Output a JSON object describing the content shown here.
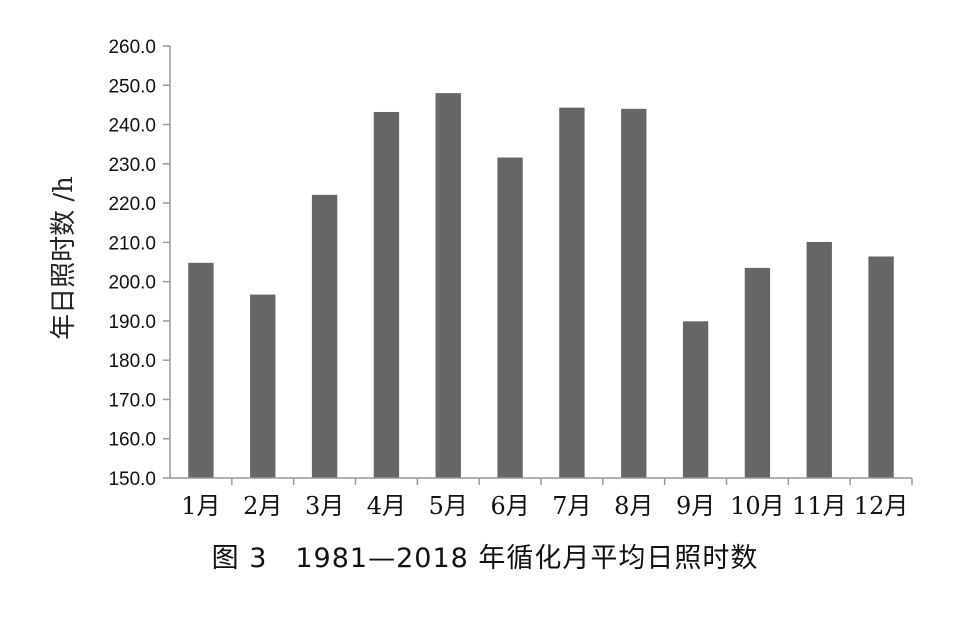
{
  "chart_data": {
    "type": "bar",
    "title": "图 3　1981—2018 年循化月平均日照时数",
    "xlabel": "",
    "ylabel": "年日照时数 /h",
    "categories": [
      "1月",
      "2月",
      "3月",
      "4月",
      "5月",
      "6月",
      "7月",
      "8月",
      "9月",
      "10月",
      "11月",
      "12月"
    ],
    "values": [
      204.8,
      196.7,
      222.1,
      243.2,
      248.0,
      231.6,
      244.3,
      244.0,
      189.9,
      203.5,
      210.1,
      206.4
    ],
    "ylim": [
      150.0,
      260.0
    ],
    "yticks": [
      "150.0",
      "160.0",
      "170.0",
      "180.0",
      "190.0",
      "200.0",
      "210.0",
      "220.0",
      "230.0",
      "240.0",
      "250.0",
      "260.0"
    ],
    "grid": false,
    "legend": "none",
    "bar_color": "#666666"
  }
}
